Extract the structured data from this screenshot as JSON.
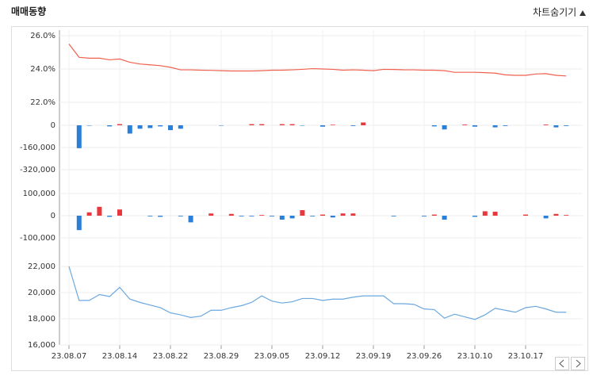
{
  "header": {
    "title": "매매동향",
    "toggle": "차트숨기기"
  },
  "chart_data": [
    {
      "type": "line",
      "series": [
        {
          "color": "#f0604f",
          "values": [
            25.5,
            24.7,
            24.65,
            24.65,
            24.55,
            24.6,
            24.4,
            24.3,
            24.25,
            24.2,
            24.1,
            23.95,
            23.95,
            23.93,
            23.92,
            23.9,
            23.88,
            23.88,
            23.88,
            23.9,
            23.93,
            23.93,
            23.95,
            23.98,
            24.02,
            24.0,
            23.98,
            23.93,
            23.95,
            23.93,
            23.9,
            23.98,
            23.97,
            23.95,
            23.95,
            23.93,
            23.93,
            23.9,
            23.8,
            23.8,
            23.8,
            23.78,
            23.75,
            23.65,
            23.62,
            23.62,
            23.7,
            23.72,
            23.62,
            23.58
          ]
        }
      ],
      "ylim": [
        21.3,
        26.3
      ],
      "yticks": [
        {
          "value": 26,
          "label": "26.0%"
        },
        {
          "value": 24,
          "label": "24.0%"
        },
        {
          "value": 22,
          "label": "22.0%"
        }
      ],
      "grid": true
    },
    {
      "type": "bar",
      "colors": {
        "positive": "#e8383d",
        "negative": "#2a7fd9"
      },
      "values": [
        0,
        -165000,
        -3000,
        0,
        -8000,
        8000,
        -60000,
        -25000,
        -20000,
        -8000,
        -35000,
        -25000,
        0,
        0,
        0,
        -3000,
        0,
        0,
        8000,
        8000,
        0,
        8000,
        8000,
        -3000,
        0,
        -10000,
        4000,
        0,
        -5000,
        20000,
        0,
        0,
        0,
        0,
        0,
        0,
        -8000,
        -30000,
        0,
        5000,
        -10000,
        0,
        -15000,
        -5000,
        0,
        0,
        0,
        5000,
        -15000,
        -5000
      ],
      "ylim": [
        -380000,
        45000
      ],
      "yticks": [
        0,
        {
          "value": -160000,
          "label": "-160,000"
        },
        {
          "value": -320000,
          "label": "-320,000"
        }
      ],
      "grid": true
    },
    {
      "type": "bar",
      "colors": {
        "positive": "#e8383d",
        "negative": "#2a7fd9"
      },
      "values": [
        0,
        -65000,
        15000,
        40000,
        -5000,
        28000,
        0,
        0,
        -3000,
        -5000,
        0,
        -3000,
        -30000,
        0,
        10000,
        0,
        8000,
        -3000,
        -3000,
        3000,
        -3000,
        -18000,
        -12000,
        25000,
        -3000,
        5000,
        -8000,
        10000,
        10000,
        0,
        0,
        0,
        -3000,
        0,
        0,
        -3000,
        5000,
        -18000,
        0,
        0,
        -5000,
        20000,
        18000,
        0,
        0,
        5000,
        0,
        -12000,
        8000,
        3000
      ],
      "ylim": [
        -135000,
        130000
      ],
      "yticks": [
        {
          "value": 100000,
          "label": "100,000"
        },
        0,
        {
          "value": -100000,
          "label": "-100,000"
        }
      ],
      "grid": true
    },
    {
      "type": "line",
      "series": [
        {
          "color": "#6aa8e0",
          "values": [
            22000,
            19400,
            19400,
            19850,
            19700,
            20400,
            19500,
            19250,
            19050,
            18850,
            18450,
            18300,
            18100,
            18200,
            18650,
            18650,
            18850,
            19000,
            19250,
            19750,
            19350,
            19200,
            19300,
            19550,
            19550,
            19400,
            19500,
            19500,
            19650,
            19750,
            19750,
            19750,
            19150,
            19150,
            19100,
            18750,
            18700,
            18050,
            18350,
            18150,
            17950,
            18300,
            18800,
            18650,
            18500,
            18850,
            18950,
            18750,
            18500,
            18500
          ]
        }
      ],
      "ylim": [
        16000,
        22400
      ],
      "yticks": [
        {
          "value": 22000,
          "label": "22,000"
        },
        {
          "value": 20000,
          "label": "20,000"
        },
        {
          "value": 18000,
          "label": "18,000"
        },
        {
          "value": 16000,
          "label": "16,000"
        }
      ],
      "grid": true,
      "categories": [
        "23.08.07",
        null,
        null,
        null,
        null,
        "23.08.14",
        null,
        null,
        null,
        null,
        "23.08.22",
        null,
        null,
        null,
        null,
        "23.08.29",
        null,
        null,
        null,
        null,
        "23.09.05",
        null,
        null,
        null,
        null,
        "23.09.12",
        null,
        null,
        null,
        null,
        "23.09.19",
        null,
        null,
        null,
        null,
        "23.09.26",
        null,
        null,
        null,
        null,
        "23.10.10",
        null,
        null,
        null,
        null,
        "23.10.17",
        null,
        null,
        null,
        null
      ]
    }
  ]
}
